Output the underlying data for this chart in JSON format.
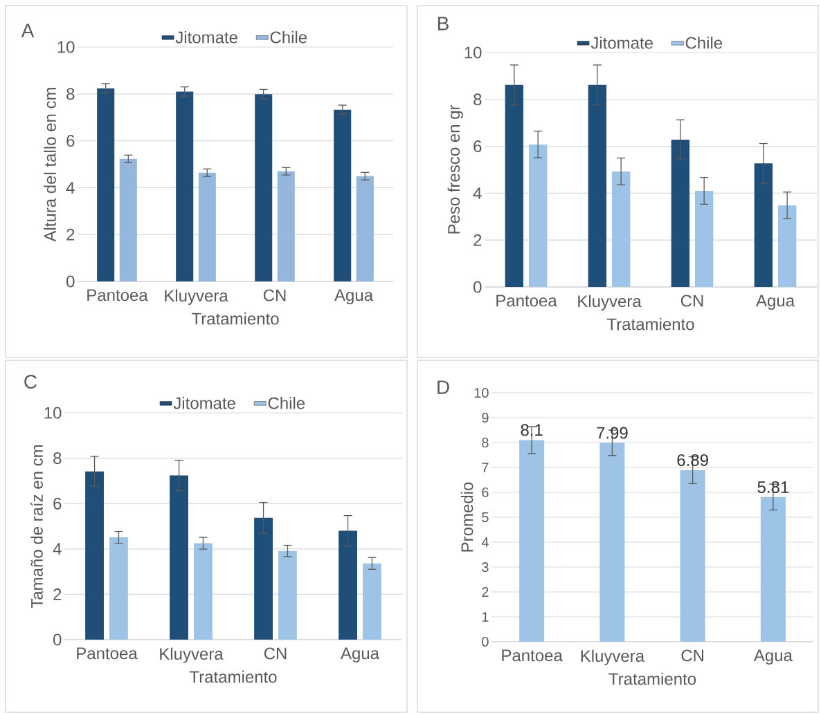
{
  "chart_data": [
    {
      "type": "bar",
      "title": "A",
      "xlabel": "Tratamiento",
      "ylabel": "Altura del tallo en cm",
      "categories": [
        "Pantoea",
        "Kluyvera",
        "CN",
        "Agua"
      ],
      "ylim": [
        0,
        10
      ],
      "yticks": [
        0,
        2,
        4,
        6,
        8,
        10
      ],
      "grid": "y",
      "legend": "top",
      "series": [
        {
          "name": "Jitomate",
          "color": "#1f4e79",
          "values": [
            8.24,
            8.1,
            7.99,
            7.32
          ],
          "errors": [
            0.2,
            0.2,
            0.2,
            0.2
          ]
        },
        {
          "name": "Chile",
          "color": "#95b7de",
          "values": [
            5.23,
            4.64,
            4.7,
            4.49
          ],
          "errors": [
            0.16,
            0.16,
            0.16,
            0.16
          ]
        }
      ]
    },
    {
      "type": "bar",
      "title": "B",
      "xlabel": "Tratamiento",
      "ylabel": "Peso fresco en gr",
      "categories": [
        "Pantoea",
        "Kluyvera",
        "CN",
        "Agua"
      ],
      "ylim": [
        0,
        10
      ],
      "yticks": [
        0,
        2,
        4,
        6,
        8,
        10
      ],
      "grid": "y",
      "legend": "top",
      "series": [
        {
          "name": "Jitomate",
          "color": "#1f4e79",
          "values": [
            8.62,
            8.62,
            6.28,
            5.27
          ],
          "errors": [
            0.85,
            0.85,
            0.85,
            0.85
          ]
        },
        {
          "name": "Chile",
          "color": "#9dc3e6",
          "values": [
            6.08,
            4.93,
            4.1,
            3.48
          ],
          "errors": [
            0.57,
            0.57,
            0.57,
            0.57
          ]
        }
      ]
    },
    {
      "type": "bar",
      "title": "C",
      "xlabel": "Tratamiento",
      "ylabel": "Tamaño de raíz en cm",
      "categories": [
        "Pantoea",
        "Kluyvera",
        "CN",
        "Agua"
      ],
      "ylim": [
        0,
        10
      ],
      "yticks": [
        0,
        2,
        4,
        6,
        8,
        10
      ],
      "grid": "y",
      "legend": "top",
      "series": [
        {
          "name": "Jitomate",
          "color": "#1f4e79",
          "values": [
            7.42,
            7.24,
            5.37,
            4.8
          ],
          "errors": [
            0.66,
            0.67,
            0.68,
            0.67
          ]
        },
        {
          "name": "Chile",
          "color": "#9dc3e6",
          "values": [
            4.51,
            4.25,
            3.91,
            3.36
          ],
          "errors": [
            0.26,
            0.26,
            0.25,
            0.26
          ]
        }
      ]
    },
    {
      "type": "bar",
      "title": "D",
      "xlabel": "Tratamiento",
      "ylabel": "Promedio",
      "categories": [
        "Pantoea",
        "Kluyvera",
        "CN",
        "Agua"
      ],
      "ylim": [
        0,
        10
      ],
      "yticks": [
        0,
        1,
        2,
        3,
        4,
        5,
        6,
        7,
        8,
        9,
        10
      ],
      "grid": "y",
      "data_labels": true,
      "color": "#9dc3e6",
      "values": [
        8.1,
        7.99,
        6.89,
        5.81
      ],
      "errors": [
        0.54,
        0.51,
        0.54,
        0.52
      ]
    }
  ]
}
